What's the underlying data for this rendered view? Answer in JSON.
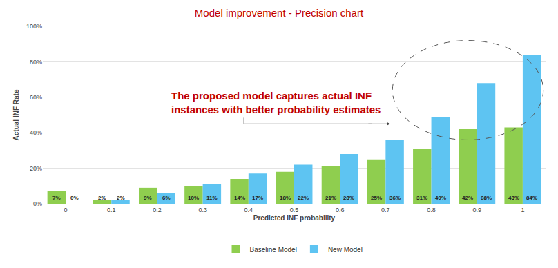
{
  "chart_data": {
    "type": "bar",
    "title": "Model improvement - Precision chart",
    "x_label": "Predicted INF probability",
    "y_label": "Actual INF Rate",
    "annotation": [
      "The proposed model captures actual INF",
      "instances with better probability estimates"
    ],
    "categories": [
      "0",
      "0.1",
      "0.2",
      "0.3",
      "0.4",
      "0.5",
      "0.6",
      "0.7",
      "0.8",
      "0.9",
      "1"
    ],
    "series": [
      {
        "name": "Baseline Model",
        "color": "#8fce4f",
        "values": [
          7,
          2,
          9,
          10,
          14,
          18,
          21,
          25,
          31,
          42,
          43
        ],
        "value_labels": [
          "7%",
          "2%",
          "9%",
          "10%",
          "14%",
          "18%",
          "21%",
          "25%",
          "31%",
          "42%",
          "43%"
        ]
      },
      {
        "name": "New Model",
        "color": "#5ec4f2",
        "values": [
          0,
          2,
          6,
          11,
          17,
          22,
          28,
          36,
          49,
          68,
          84
        ],
        "value_labels": [
          "0%",
          "2%",
          "6%",
          "11%",
          "17%",
          "22%",
          "28%",
          "36%",
          "49%",
          "68%",
          "84%"
        ]
      }
    ],
    "ylim": [
      0,
      100
    ],
    "yticks": [
      {
        "value": 0,
        "label": "0%"
      },
      {
        "value": 20,
        "label": "20%"
      },
      {
        "value": 40,
        "label": "40%"
      },
      {
        "value": 60,
        "label": "60%"
      },
      {
        "value": 80,
        "label": "80%"
      },
      {
        "value": 100,
        "label": "100%"
      }
    ],
    "grid": true,
    "legend": "bottom",
    "data_labels": true
  }
}
